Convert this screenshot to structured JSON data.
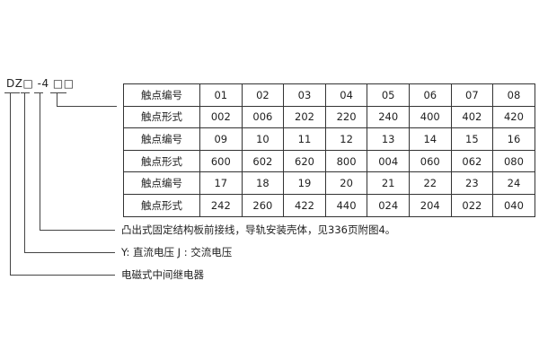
{
  "model_code": "DZ□ -4 □□",
  "table": {
    "rows": [
      {
        "label": "触点编号",
        "values": [
          "01",
          "02",
          "03",
          "04",
          "05",
          "06",
          "07",
          "08"
        ]
      },
      {
        "label": "触点形式",
        "values": [
          "002",
          "006",
          "202",
          "220",
          "240",
          "400",
          "402",
          "420"
        ]
      },
      {
        "label": "触点编号",
        "values": [
          "09",
          "10",
          "11",
          "12",
          "13",
          "14",
          "15",
          "16"
        ]
      },
      {
        "label": "触点形式",
        "values": [
          "600",
          "602",
          "620",
          "800",
          "004",
          "060",
          "062",
          "080"
        ]
      },
      {
        "label": "触点编号",
        "values": [
          "17",
          "18",
          "19",
          "20",
          "21",
          "22",
          "23",
          "24"
        ]
      },
      {
        "label": "触点形式",
        "values": [
          "242",
          "260",
          "422",
          "440",
          "024",
          "204",
          "022",
          "040"
        ]
      }
    ]
  },
  "annotations": {
    "structure": "凸出式固定结构板前接线，导轨安装壳体，见336页附图4。",
    "voltage": "Y: 直流电压   J : 交流电压",
    "type": "电磁式中间继电器"
  }
}
